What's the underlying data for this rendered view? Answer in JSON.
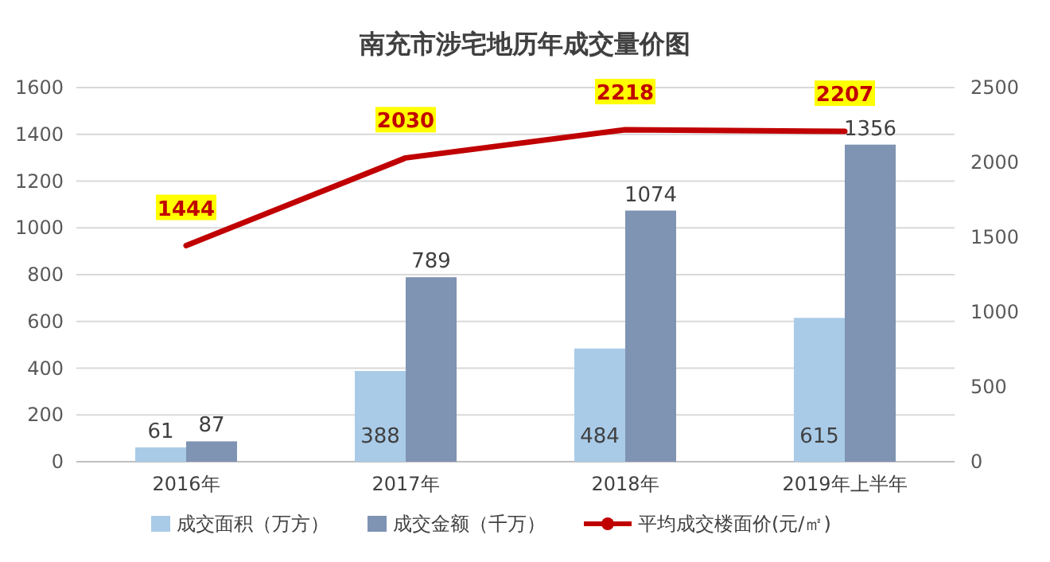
{
  "chart_data": {
    "type": "bar",
    "title": "南充市涉宅地历年成交量价图",
    "categories": [
      "2016年",
      "2017年",
      "2018年",
      "2019年上半年"
    ],
    "series": [
      {
        "name": "成交面积（万方）",
        "color": "#a9cbe8",
        "values": [
          61,
          388,
          484,
          615
        ]
      },
      {
        "name": "成交金额（千万）",
        "color": "#7f93b3",
        "values": [
          87,
          789,
          1074,
          1356
        ]
      },
      {
        "name": "平均成交楼面价(元/㎡)",
        "color": "#c00000",
        "type": "line",
        "axis": "y2",
        "values": [
          1444,
          2030,
          2218,
          2207
        ]
      }
    ],
    "ylim": [
      0,
      1600
    ],
    "yticks": [
      0,
      200,
      400,
      600,
      800,
      1000,
      1200,
      1400,
      1600
    ],
    "y2lim": [
      0,
      2500
    ],
    "y2ticks": [
      0,
      500,
      1000,
      1500,
      2000,
      2500
    ],
    "grid": "y",
    "legend": "bottom",
    "data_labels": true
  }
}
